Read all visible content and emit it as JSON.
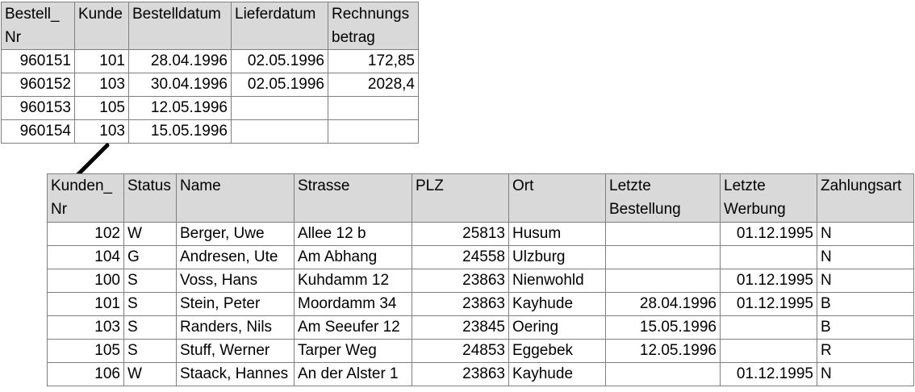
{
  "orders": {
    "headers": [
      "Bestell_ Nr",
      "Kunde",
      "Bestelldatum",
      "Lieferdatum",
      "Rechnungs betrag"
    ],
    "rows": [
      [
        "960151",
        "101",
        "28.04.1996",
        "02.05.1996",
        "172,85"
      ],
      [
        "960152",
        "103",
        "30.04.1996",
        "02.05.1996",
        "2028,4"
      ],
      [
        "960153",
        "105",
        "12.05.1996",
        "",
        ""
      ],
      [
        "960154",
        "103",
        "15.05.1996",
        "",
        ""
      ]
    ]
  },
  "customers": {
    "headers": [
      "Kunden_ Nr",
      "Status",
      "Name",
      "Strasse",
      "PLZ",
      "Ort",
      "Letzte Bestellung",
      "Letzte Werbung",
      "Zahlungsart"
    ],
    "rows": [
      [
        "102",
        "W",
        "Berger, Uwe",
        "Allee 12 b",
        "25813",
        "Husum",
        "",
        "01.12.1995",
        "N"
      ],
      [
        "104",
        "G",
        "Andresen, Ute",
        "Am Abhang",
        "24558",
        "Ulzburg",
        "",
        "",
        "N"
      ],
      [
        "100",
        "S",
        "Voss, Hans",
        "Kuhdamm 12",
        "23863",
        "Nienwohld",
        "",
        "01.12.1995",
        "N"
      ],
      [
        "101",
        "S",
        "Stein, Peter",
        "Moordamm 34",
        "23863",
        "Kayhude",
        "28.04.1996",
        "01.12.1995",
        "B"
      ],
      [
        "103",
        "S",
        "Randers, Nils",
        "Am Seeufer 12",
        "23845",
        "Oering",
        "15.05.1996",
        "",
        "B"
      ],
      [
        "105",
        "S",
        "Stuff, Werner",
        "Tarper Weg",
        "24853",
        "Eggebek",
        "12.05.1996",
        "",
        "R"
      ],
      [
        "106",
        "W",
        "Staack, Hannes",
        "An der Alster 1",
        "23863",
        "Kayhude",
        "",
        "01.12.1995",
        "N"
      ]
    ]
  }
}
